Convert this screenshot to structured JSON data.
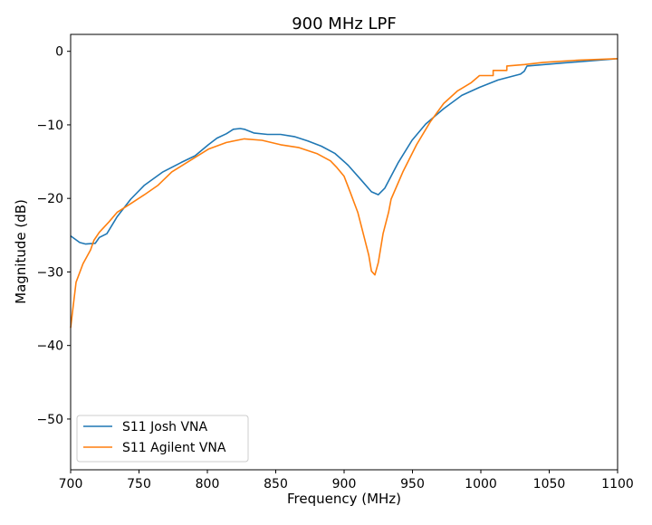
{
  "chart_data": {
    "type": "line",
    "title": "900 MHz LPF",
    "xlabel": "Frequency (MHz)",
    "ylabel": "Magnitude (dB)",
    "xlim": [
      700,
      1100
    ],
    "ylim": [
      -56.9,
      2.3
    ],
    "xticks": [
      700,
      750,
      800,
      850,
      900,
      950,
      1000,
      1050,
      1100
    ],
    "xtick_labels": [
      "700",
      "750",
      "800",
      "850",
      "900",
      "950",
      "1000",
      "1050",
      "1100"
    ],
    "yticks": [
      0,
      -10,
      -20,
      -30,
      -40,
      -50
    ],
    "ytick_labels": [
      "0",
      "−10",
      "−20",
      "−30",
      "−40",
      "−50"
    ],
    "grid": false,
    "legend_position": "lower-left",
    "series": [
      {
        "name": "S11 Josh VNA",
        "color": "#1f77b4",
        "x": [
          700,
          706.6,
          711,
          718,
          721,
          726.5,
          734,
          744,
          754,
          767.5,
          781,
          791,
          800.7,
          807,
          814,
          819,
          824,
          827,
          834,
          844,
          853.6,
          863.6,
          873.5,
          883.4,
          893.4,
          903,
          913,
          920,
          925,
          929.8,
          939.7,
          949.7,
          959.6,
          972.8,
          986,
          999,
          1012.6,
          1029,
          1031.8,
          1033.8,
          1059,
          1100
        ],
        "y": [
          -25.1,
          -26.0,
          -26.2,
          -26.1,
          -25.3,
          -24.8,
          -22.5,
          -20.1,
          -18.2,
          -16.4,
          -15.1,
          -14.2,
          -12.7,
          -11.8,
          -11.2,
          -10.6,
          -10.5,
          -10.6,
          -11.1,
          -11.3,
          -11.3,
          -11.6,
          -12.2,
          -12.9,
          -13.9,
          -15.5,
          -17.6,
          -19.1,
          -19.5,
          -18.6,
          -15.1,
          -12.1,
          -9.9,
          -7.8,
          -6.0,
          -4.9,
          -3.9,
          -3.1,
          -2.7,
          -2.0,
          -1.6,
          -1.0
        ]
      },
      {
        "name": "S11 Agilent VNA",
        "color": "#ff7f0e",
        "x": [
          700,
          701.3,
          704,
          709,
          714.6,
          717,
          721,
          728,
          734,
          744,
          754,
          764,
          774,
          787,
          800.7,
          814,
          827,
          840,
          853.6,
          867,
          880,
          890,
          894.7,
          900,
          904.6,
          910,
          914.6,
          918,
          920,
          922.5,
          925,
          928.5,
          932.5,
          934.4,
          943,
          953,
          963,
          972.8,
          982.8,
          992.7,
          999,
          1009,
          1009,
          1019,
          1019,
          1032,
          1045.7,
          1072,
          1100
        ],
        "y": [
          -37.6,
          -35.5,
          -31.4,
          -28.9,
          -27.0,
          -25.7,
          -24.6,
          -23.2,
          -21.9,
          -20.7,
          -19.5,
          -18.2,
          -16.4,
          -14.9,
          -13.3,
          -12.4,
          -11.9,
          -12.1,
          -12.7,
          -13.1,
          -13.9,
          -14.9,
          -15.8,
          -17.0,
          -19.2,
          -21.9,
          -25.2,
          -27.7,
          -29.9,
          -30.4,
          -28.7,
          -24.8,
          -21.9,
          -20.1,
          -16.4,
          -12.7,
          -9.6,
          -7.1,
          -5.4,
          -4.3,
          -3.3,
          -3.3,
          -2.6,
          -2.6,
          -2.0,
          -1.8,
          -1.5,
          -1.2,
          -1.0
        ]
      }
    ]
  }
}
